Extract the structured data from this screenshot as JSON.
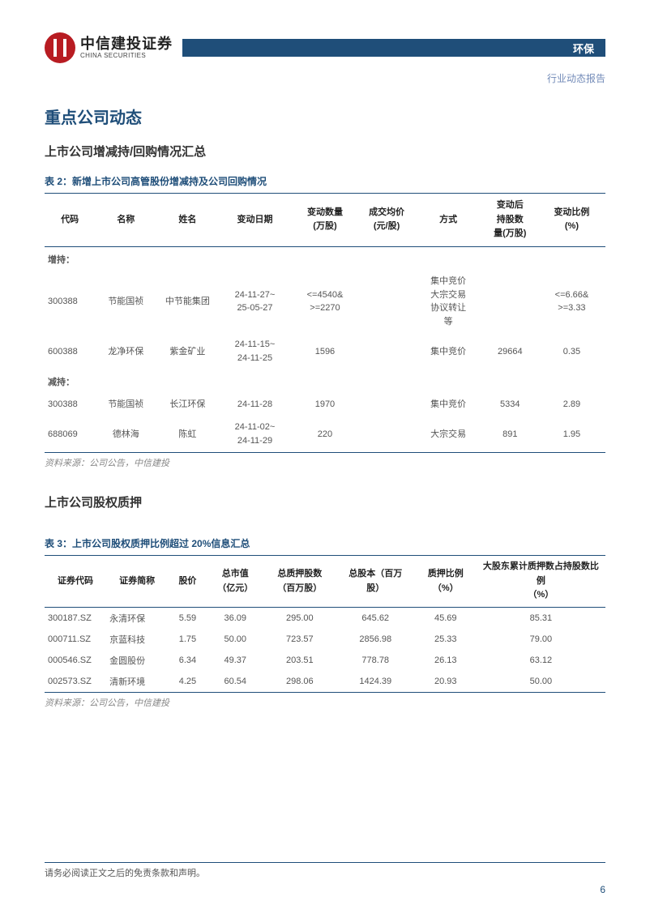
{
  "header": {
    "logo_cn": "中信建投证券",
    "logo_en": "CHINA SECURITIES",
    "category": "环保",
    "report_type": "行业动态报告"
  },
  "sections": {
    "h1": "重点公司动态",
    "sub1": "上市公司增减持/回购情况汇总",
    "table2_title": "表 2：新增上市公司高管股份增减持及公司回购情况",
    "sub2": "上市公司股权质押",
    "table3_title": "表 3：上市公司股权质押比例超过 20%信息汇总"
  },
  "table2": {
    "columns": [
      "代码",
      "名称",
      "姓名",
      "变动日期",
      "变动数量\n(万股)",
      "成交均价\n(元/股)",
      "方式",
      "变动后\n持股数\n量(万股)",
      "变动比例\n(%)"
    ],
    "section_increase": "增持：",
    "section_decrease": "减持：",
    "rows_increase": [
      {
        "code": "300388",
        "name": "节能国祯",
        "person": "中节能集团",
        "date": "24-11-27~\n25-05-27",
        "qty": "<=4540&\n>=2270",
        "price": "",
        "method": "集中竞价\n大宗交易\n协议转让\n等",
        "after": "",
        "ratio": "<=6.66&\n>=3.33"
      },
      {
        "code": "600388",
        "name": "龙净环保",
        "person": "紫金矿业",
        "date": "24-11-15~\n24-11-25",
        "qty": "1596",
        "price": "",
        "method": "集中竞价",
        "after": "29664",
        "ratio": "0.35"
      }
    ],
    "rows_decrease": [
      {
        "code": "300388",
        "name": "节能国祯",
        "person": "长江环保",
        "date": "24-11-28",
        "qty": "1970",
        "price": "",
        "method": "集中竞价",
        "after": "5334",
        "ratio": "2.89"
      },
      {
        "code": "688069",
        "name": "德林海",
        "person": "陈虹",
        "date": "24-11-02~\n24-11-29",
        "qty": "220",
        "price": "",
        "method": "大宗交易",
        "after": "891",
        "ratio": "1.95"
      }
    ],
    "source": "资料来源：公司公告，中信建投"
  },
  "table3": {
    "columns": [
      "证券代码",
      "证券简称",
      "股价",
      "总市值\n（亿元）",
      "总质押股数\n（百万股）",
      "总股本（百万\n股）",
      "质押比例\n（%）",
      "大股东累计质押数占持股数比例\n（%）"
    ],
    "rows": [
      {
        "code": "300187.SZ",
        "name": "永清环保",
        "price": "5.59",
        "mcap": "36.09",
        "pledged": "295.00",
        "total": "645.62",
        "ratio": "45.69",
        "major": "85.31"
      },
      {
        "code": "000711.SZ",
        "name": "京蓝科技",
        "price": "1.75",
        "mcap": "50.00",
        "pledged": "723.57",
        "total": "2856.98",
        "ratio": "25.33",
        "major": "79.00"
      },
      {
        "code": "000546.SZ",
        "name": "金圆股份",
        "price": "6.34",
        "mcap": "49.37",
        "pledged": "203.51",
        "total": "778.78",
        "ratio": "26.13",
        "major": "63.12"
      },
      {
        "code": "002573.SZ",
        "name": "清新环境",
        "price": "4.25",
        "mcap": "60.54",
        "pledged": "298.06",
        "total": "1424.39",
        "ratio": "20.93",
        "major": "50.00"
      }
    ],
    "source": "资料来源：公司公告，中信建投"
  },
  "footer": {
    "disclaimer": "请务必阅读正文之后的免责条款和声明。",
    "page": "6"
  },
  "colors": {
    "brand_blue": "#1f4e79",
    "brand_red": "#b81c22",
    "text_muted": "#888888"
  }
}
